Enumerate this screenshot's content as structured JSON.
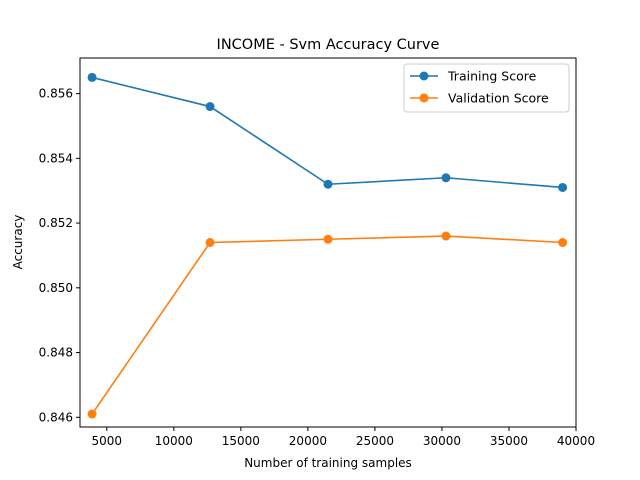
{
  "chart_data": {
    "type": "line",
    "title": "INCOME - Svm Accuracy Curve",
    "xlabel": "Number of training samples",
    "ylabel": "Accuracy",
    "x": [
      3900,
      12700,
      21500,
      30300,
      39000
    ],
    "xlim": [
      3000,
      40000
    ],
    "ylim": [
      0.8457,
      0.8571
    ],
    "xticks": [
      5000,
      10000,
      15000,
      20000,
      25000,
      30000,
      35000,
      40000
    ],
    "yticks": [
      0.846,
      0.848,
      0.85,
      0.852,
      0.854,
      0.856
    ],
    "xtick_labels": [
      "5000",
      "10000",
      "15000",
      "20000",
      "25000",
      "30000",
      "35000",
      "40000"
    ],
    "ytick_labels": [
      "0.846",
      "0.848",
      "0.850",
      "0.852",
      "0.854",
      "0.856"
    ],
    "grid": false,
    "legend_position": "top-right",
    "series": [
      {
        "name": "Training Score",
        "color": "#1f77b4",
        "values": [
          0.8565,
          0.8556,
          0.8532,
          0.8534,
          0.8531
        ]
      },
      {
        "name": "Validation Score",
        "color": "#ff7f0e",
        "values": [
          0.8461,
          0.8514,
          0.8515,
          0.8516,
          0.8514
        ]
      }
    ]
  }
}
